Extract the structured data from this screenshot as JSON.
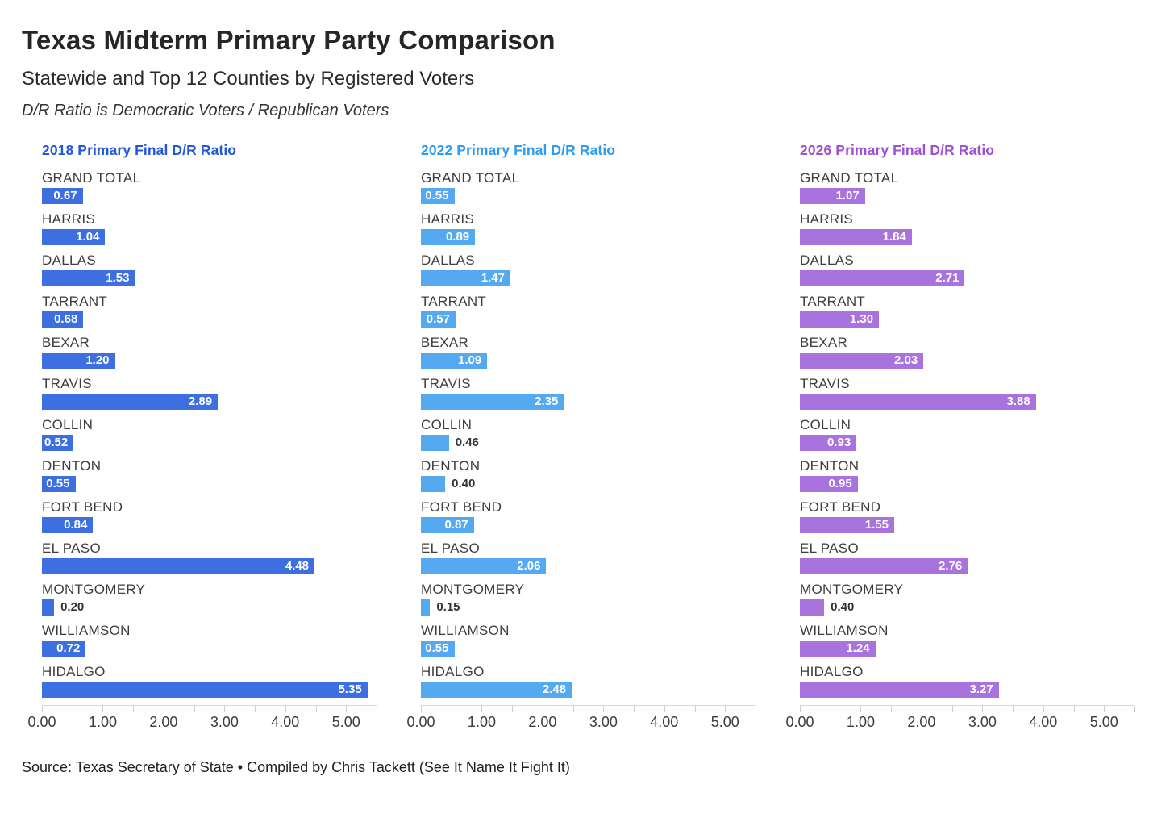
{
  "header": {
    "title": "Texas Midterm Primary Party Comparison",
    "subtitle": "Statewide and Top 12 Counties by Registered Voters",
    "note": "D/R Ratio is Democratic Voters / Republican Voters"
  },
  "footer": {
    "source": "Source: Texas Secretary of State • Compiled by Chris Tackett (See It Name It Fight It)"
  },
  "chart_data": [
    {
      "type": "bar",
      "title": "2018 Primary Final D/R Ratio",
      "title_color": "#2257d9",
      "bar_color": "#3e6fe1",
      "orientation": "horizontal",
      "categories": [
        "GRAND TOTAL",
        "HARRIS",
        "DALLAS",
        "TARRANT",
        "BEXAR",
        "TRAVIS",
        "COLLIN",
        "DENTON",
        "FORT BEND",
        "EL PASO",
        "MONTGOMERY",
        "WILLIAMSON",
        "HIDALGO"
      ],
      "values": [
        0.67,
        1.04,
        1.53,
        0.68,
        1.2,
        2.89,
        0.52,
        0.55,
        0.84,
        4.48,
        0.2,
        0.72,
        5.35
      ],
      "xlim": [
        0,
        5.5
      ],
      "x_ticks": [
        0,
        0.5,
        1,
        1.5,
        2,
        2.5,
        3,
        3.5,
        4,
        4.5,
        5,
        5.5
      ],
      "x_tick_labels": [
        "0.00",
        "1.00",
        "2.00",
        "3.00",
        "4.00",
        "5.00"
      ],
      "x_tick_label_values": [
        0,
        1,
        2,
        3,
        4,
        5
      ],
      "grid": "off",
      "legend": "none"
    },
    {
      "type": "bar",
      "title": "2022 Primary Final D/R Ratio",
      "title_color": "#2e9bf3",
      "bar_color": "#55a9f1",
      "orientation": "horizontal",
      "categories": [
        "GRAND TOTAL",
        "HARRIS",
        "DALLAS",
        "TARRANT",
        "BEXAR",
        "TRAVIS",
        "COLLIN",
        "DENTON",
        "FORT BEND",
        "EL PASO",
        "MONTGOMERY",
        "WILLIAMSON",
        "HIDALGO"
      ],
      "values": [
        0.55,
        0.89,
        1.47,
        0.57,
        1.09,
        2.35,
        0.46,
        0.4,
        0.87,
        2.06,
        0.15,
        0.55,
        2.48
      ],
      "xlim": [
        0,
        5.5
      ],
      "x_ticks": [
        0,
        0.5,
        1,
        1.5,
        2,
        2.5,
        3,
        3.5,
        4,
        4.5,
        5,
        5.5
      ],
      "x_tick_labels": [
        "0.00",
        "1.00",
        "2.00",
        "3.00",
        "4.00",
        "5.00"
      ],
      "x_tick_label_values": [
        0,
        1,
        2,
        3,
        4,
        5
      ],
      "grid": "off",
      "legend": "none"
    },
    {
      "type": "bar",
      "title": "2026 Primary Final D/R Ratio",
      "title_color": "#9c51d3",
      "bar_color": "#a873dc",
      "orientation": "horizontal",
      "categories": [
        "GRAND TOTAL",
        "HARRIS",
        "DALLAS",
        "TARRANT",
        "BEXAR",
        "TRAVIS",
        "COLLIN",
        "DENTON",
        "FORT BEND",
        "EL PASO",
        "MONTGOMERY",
        "WILLIAMSON",
        "HIDALGO"
      ],
      "values": [
        1.07,
        1.84,
        2.71,
        1.3,
        2.03,
        3.88,
        0.93,
        0.95,
        1.55,
        2.76,
        0.4,
        1.24,
        3.27
      ],
      "xlim": [
        0,
        5.5
      ],
      "x_ticks": [
        0,
        0.5,
        1,
        1.5,
        2,
        2.5,
        3,
        3.5,
        4,
        4.5,
        5,
        5.5
      ],
      "x_tick_labels": [
        "0.00",
        "1.00",
        "2.00",
        "3.00",
        "4.00",
        "5.00"
      ],
      "x_tick_label_values": [
        0,
        1,
        2,
        3,
        4,
        5
      ],
      "grid": "off",
      "legend": "none"
    }
  ]
}
